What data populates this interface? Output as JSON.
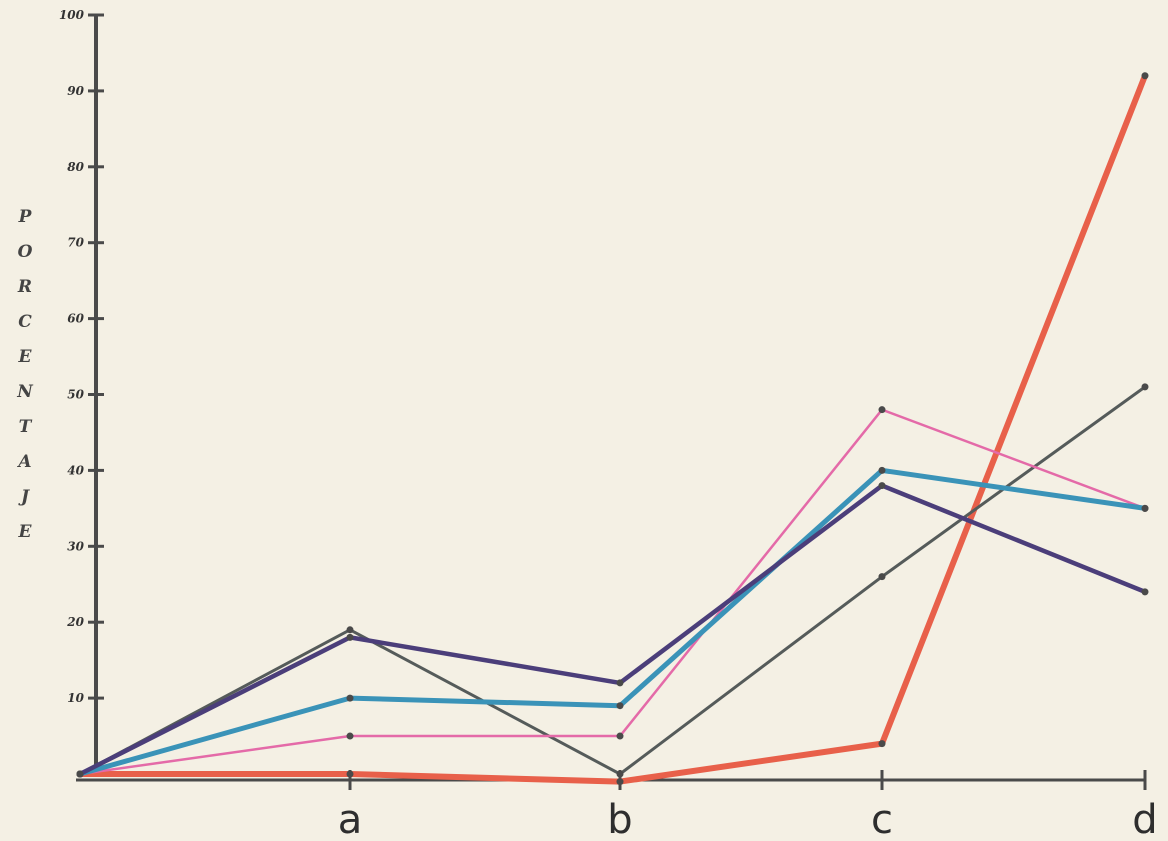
{
  "chart_data": {
    "type": "line",
    "title": "",
    "xlabel": "",
    "ylabel": "PORCENTAJE",
    "ylim": [
      0,
      100
    ],
    "grid": false,
    "categories": [
      "",
      "a",
      "b",
      "c",
      "d"
    ],
    "yticks": [
      10,
      20,
      30,
      40,
      50,
      60,
      70,
      80,
      90,
      100
    ],
    "ytick_labels": [
      "10",
      "20",
      "30",
      "40",
      "50",
      "60",
      "70",
      "80",
      "90",
      "100"
    ],
    "series": [
      {
        "color": "#e8604a",
        "values": [
          0,
          0,
          -1,
          4,
          92
        ]
      },
      {
        "color": "#555b5a",
        "values": [
          0,
          19,
          0,
          26,
          51
        ]
      },
      {
        "color": "#e46aa8",
        "values": [
          0,
          5,
          5,
          48,
          35
        ]
      },
      {
        "color": "#3a93b8",
        "values": [
          0,
          10,
          9,
          40,
          35
        ]
      },
      {
        "color": "#4b3e7a",
        "values": [
          0,
          18,
          12,
          38,
          24
        ]
      }
    ]
  }
}
